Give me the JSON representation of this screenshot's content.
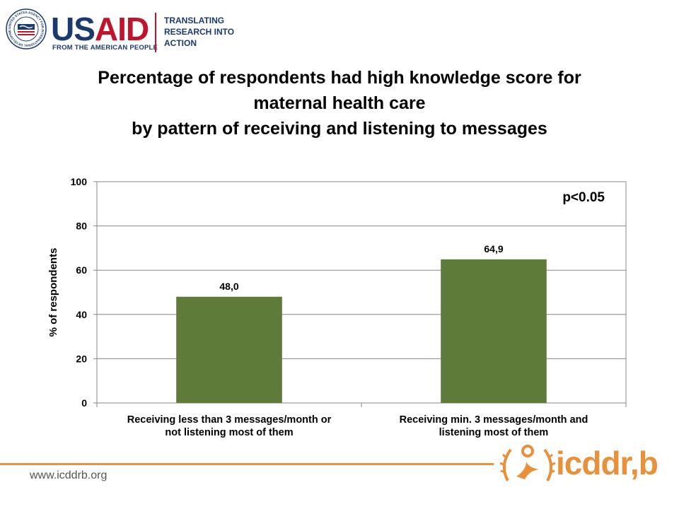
{
  "header": {
    "usaid_prefix": "US",
    "usaid_suffix": "AID",
    "usaid_tagline": "FROM THE AMERICAN PEOPLE",
    "partner_lines": [
      "TRANSLATING",
      "RESEARCH INTO",
      "ACTION"
    ],
    "seal_text": "UNITED STATES AGENCY FOR INTERNATIONAL DEVELOPMENT"
  },
  "title_lines": [
    "Percentage of respondents had high knowledge score for",
    "maternal health care",
    "by pattern of receiving and listening to messages"
  ],
  "chart_data": {
    "type": "bar",
    "categories": [
      [
        "Receiving less than 3 messages/month or",
        "not listening most of them"
      ],
      [
        "Receiving min. 3 messages/month and",
        "listening most of them"
      ]
    ],
    "values": [
      48.0,
      64.9
    ],
    "data_labels": [
      "48,0",
      "64,9"
    ],
    "ylabel": "% of respondents",
    "ylim": [
      0,
      100
    ],
    "yticks": [
      0,
      20,
      40,
      60,
      80,
      100
    ],
    "annotation": "p<0.05",
    "grid": true,
    "bar_color": "#5f7b3a"
  },
  "footer": {
    "url": "www.icddrb.org",
    "logo_text": "icddr,b",
    "accent_color": "#e8903a"
  }
}
